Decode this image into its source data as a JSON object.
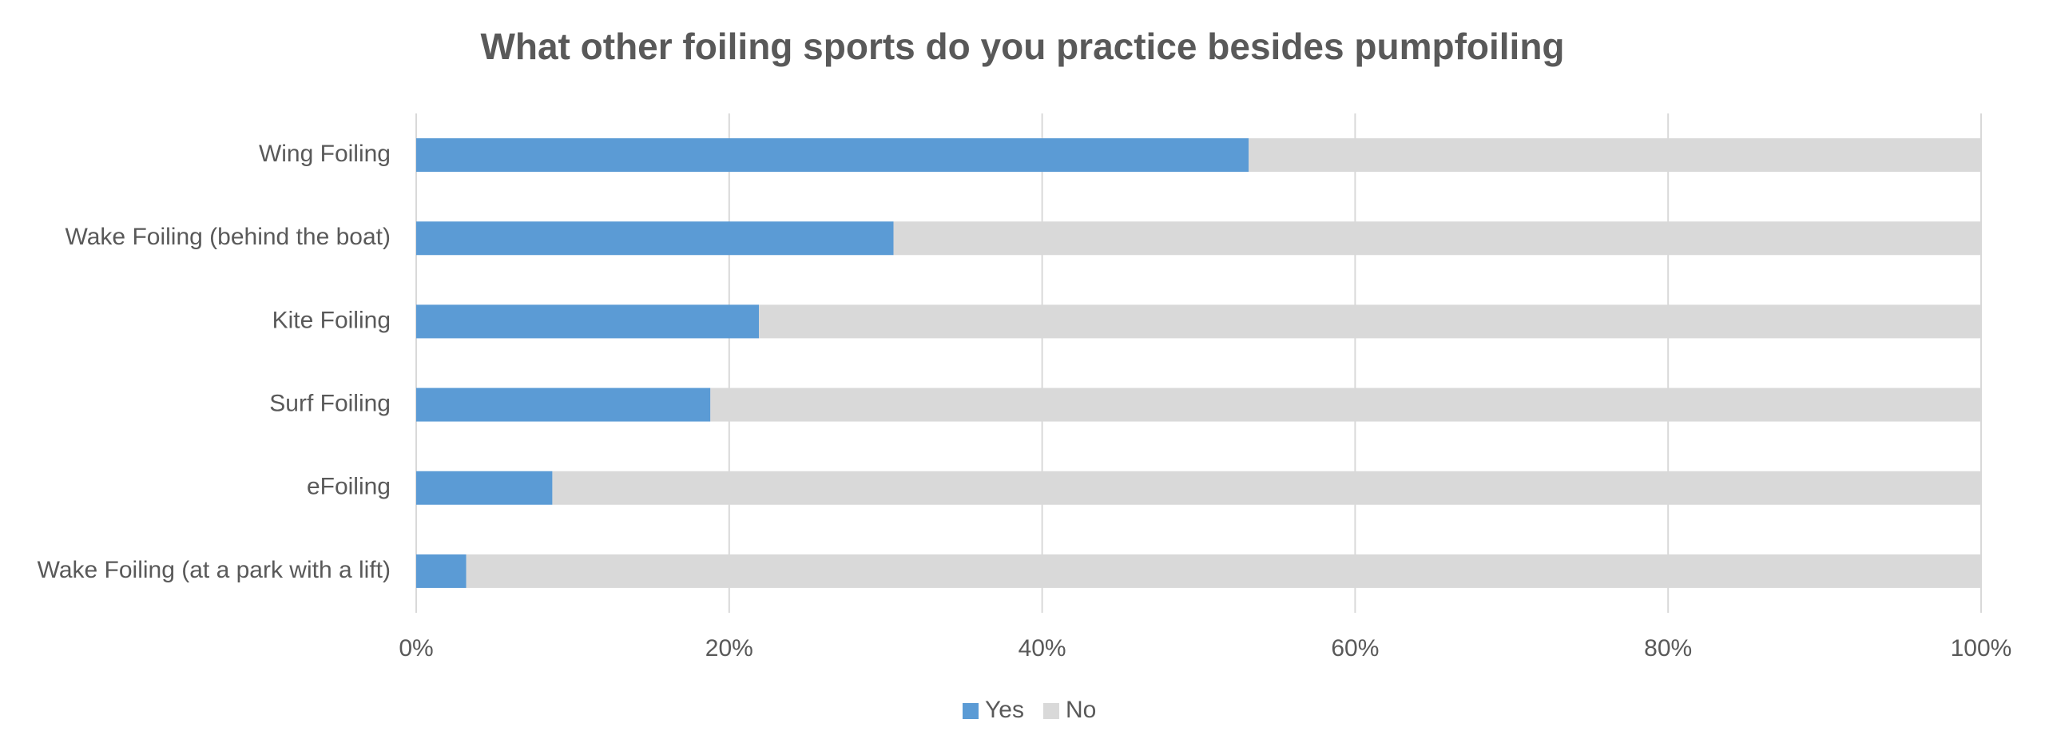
{
  "chart_data": {
    "type": "stacked-bar-horizontal",
    "title": "What other foiling sports do you practice besides pumpfoiling",
    "categories": [
      "Wing Foiling",
      "Wake Foiling (behind the boat)",
      "Kite Foiling",
      "Surf Foiling",
      "eFoiling",
      "Wake Foiling (at a park with a lift)"
    ],
    "series": [
      {
        "name": "Yes",
        "color": "#5b9bd5",
        "values": [
          53.2,
          30.5,
          21.9,
          18.8,
          8.7,
          3.2
        ]
      },
      {
        "name": "No",
        "color": "#d9d9d9",
        "values": [
          46.8,
          69.5,
          78.1,
          81.2,
          91.3,
          96.8
        ]
      }
    ],
    "xlim": [
      0,
      100
    ],
    "xticks": [
      {
        "value": 0,
        "label": "0%"
      },
      {
        "value": 20,
        "label": "20%"
      },
      {
        "value": 40,
        "label": "40%"
      },
      {
        "value": 60,
        "label": "60%"
      },
      {
        "value": 80,
        "label": "80%"
      },
      {
        "value": 100,
        "label": "100%"
      }
    ],
    "grid": true,
    "legend": "bottom"
  }
}
